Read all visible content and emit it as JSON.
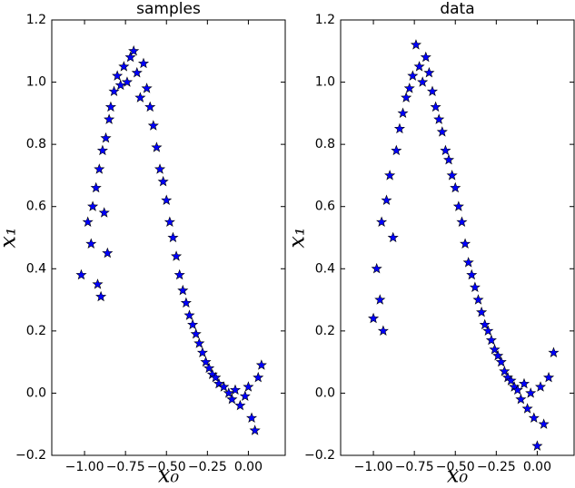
{
  "chart_data": [
    {
      "type": "scatter",
      "title": "samples",
      "xlabel": "x₀",
      "ylabel": "x₁",
      "color": "#0000ff",
      "x": [
        -1.02,
        -0.98,
        -0.96,
        -0.95,
        -0.93,
        -0.92,
        -0.91,
        -0.9,
        -0.89,
        -0.88,
        -0.87,
        -0.86,
        -0.85,
        -0.84,
        -0.82,
        -0.8,
        -0.78,
        -0.76,
        -0.74,
        -0.72,
        -0.7,
        -0.68,
        -0.66,
        -0.64,
        -0.62,
        -0.6,
        -0.58,
        -0.56,
        -0.54,
        -0.52,
        -0.5,
        -0.48,
        -0.46,
        -0.44,
        -0.42,
        -0.4,
        -0.38,
        -0.36,
        -0.34,
        -0.32,
        -0.3,
        -0.28,
        -0.26,
        -0.24,
        -0.22,
        -0.2,
        -0.18,
        -0.15,
        -0.12,
        -0.1,
        -0.08,
        -0.05,
        -0.02,
        0.0,
        0.02,
        0.04,
        0.06,
        0.08
      ],
      "values": [
        0.38,
        0.55,
        0.48,
        0.6,
        0.66,
        0.35,
        0.72,
        0.31,
        0.78,
        0.58,
        0.82,
        0.45,
        0.88,
        0.92,
        0.97,
        1.02,
        0.99,
        1.05,
        1.0,
        1.08,
        1.1,
        1.03,
        0.95,
        1.06,
        0.98,
        0.92,
        0.86,
        0.79,
        0.72,
        0.68,
        0.62,
        0.55,
        0.5,
        0.44,
        0.38,
        0.33,
        0.29,
        0.25,
        0.22,
        0.19,
        0.16,
        0.13,
        0.1,
        0.08,
        0.06,
        0.05,
        0.03,
        0.02,
        0.0,
        -0.02,
        0.01,
        -0.04,
        -0.01,
        0.02,
        -0.08,
        -0.12,
        0.05,
        0.09
      ],
      "xlim": [
        -1.2,
        0.225
      ],
      "xticks": [
        {
          "value": -1,
          "label": "−1.00"
        },
        {
          "value": -0.75,
          "label": "−0.75"
        },
        {
          "value": -0.5,
          "label": "−0.50"
        },
        {
          "value": -0.25,
          "label": "−0.25"
        },
        {
          "value": 0,
          "label": "0.00"
        }
      ],
      "ylim": [
        -0.2,
        1.2
      ],
      "yticks": [
        {
          "value": -0.2,
          "label": "−0.2"
        },
        {
          "value": 0,
          "label": "0.0"
        },
        0.2,
        0.4,
        0.6,
        0.8,
        {
          "value": 1,
          "label": "1.0"
        },
        1.2
      ]
    },
    {
      "type": "scatter",
      "title": "data",
      "xlabel": "x₀",
      "ylabel": "x₁",
      "color": "#0000ff",
      "x": [
        -1.0,
        -0.98,
        -0.96,
        -0.95,
        -0.94,
        -0.92,
        -0.9,
        -0.88,
        -0.86,
        -0.84,
        -0.82,
        -0.8,
        -0.78,
        -0.76,
        -0.74,
        -0.72,
        -0.7,
        -0.68,
        -0.66,
        -0.64,
        -0.62,
        -0.6,
        -0.58,
        -0.56,
        -0.54,
        -0.52,
        -0.5,
        -0.48,
        -0.46,
        -0.44,
        -0.42,
        -0.4,
        -0.38,
        -0.36,
        -0.34,
        -0.32,
        -0.3,
        -0.28,
        -0.26,
        -0.24,
        -0.22,
        -0.2,
        -0.18,
        -0.16,
        -0.14,
        -0.12,
        -0.1,
        -0.08,
        -0.06,
        -0.04,
        -0.02,
        0.0,
        0.02,
        0.04,
        0.07,
        0.1
      ],
      "values": [
        0.24,
        0.4,
        0.3,
        0.55,
        0.2,
        0.62,
        0.7,
        0.5,
        0.78,
        0.85,
        0.9,
        0.95,
        0.98,
        1.02,
        1.12,
        1.05,
        1.0,
        1.08,
        1.03,
        0.97,
        0.92,
        0.88,
        0.84,
        0.78,
        0.75,
        0.7,
        0.66,
        0.6,
        0.55,
        0.48,
        0.42,
        0.38,
        0.34,
        0.3,
        0.26,
        0.22,
        0.2,
        0.17,
        0.14,
        0.12,
        0.1,
        0.07,
        0.05,
        0.04,
        0.02,
        0.01,
        -0.02,
        0.03,
        -0.05,
        0.0,
        -0.08,
        -0.17,
        0.02,
        -0.1,
        0.05,
        0.13
      ],
      "xlim": [
        -1.2,
        0.225
      ],
      "xticks": [
        {
          "value": -1,
          "label": "−1.00"
        },
        {
          "value": -0.75,
          "label": "−0.75"
        },
        {
          "value": -0.5,
          "label": "−0.50"
        },
        {
          "value": -0.25,
          "label": "−0.25"
        },
        {
          "value": 0,
          "label": "0.00"
        }
      ],
      "ylim": [
        -0.2,
        1.2
      ],
      "yticks": [
        {
          "value": -0.2,
          "label": "−0.2"
        },
        {
          "value": 0,
          "label": "0.0"
        },
        0.2,
        0.4,
        0.6,
        0.8,
        {
          "value": 1,
          "label": "1.0"
        },
        1.2
      ]
    }
  ]
}
